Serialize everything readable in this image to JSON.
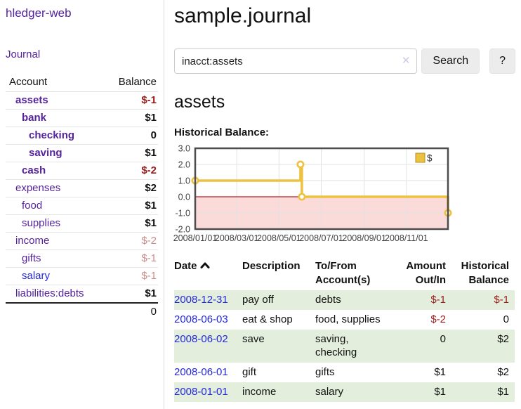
{
  "sidebar": {
    "brand": "hledger-web",
    "nav_journal": "Journal",
    "accounts_table": {
      "headers": [
        "Account",
        "Balance"
      ],
      "rows": [
        {
          "name": "assets",
          "depth": 1,
          "bold": true,
          "balance": "$-1",
          "balance_color": "dark-red"
        },
        {
          "name": "bank",
          "depth": 2,
          "bold": true,
          "balance": "$1",
          "balance_color": "black"
        },
        {
          "name": "checking",
          "depth": 3,
          "bold": true,
          "balance": "0",
          "balance_color": "black"
        },
        {
          "name": "saving",
          "depth": 3,
          "bold": true,
          "balance": "$1",
          "balance_color": "black"
        },
        {
          "name": "cash",
          "depth": 2,
          "bold": true,
          "balance": "$-2",
          "balance_color": "dark-red"
        },
        {
          "name": "expenses",
          "depth": 1,
          "bold": false,
          "balance": "$2",
          "balance_color": "black"
        },
        {
          "name": "food",
          "depth": 2,
          "bold": false,
          "balance": "$1",
          "balance_color": "black"
        },
        {
          "name": "supplies",
          "depth": 2,
          "bold": false,
          "balance": "$1",
          "balance_color": "black"
        },
        {
          "name": "income",
          "depth": 1,
          "bold": false,
          "balance": "$-2",
          "balance_color": "soft-red"
        },
        {
          "name": "gifts",
          "depth": 2,
          "bold": false,
          "balance": "$-1",
          "balance_color": "soft-red"
        },
        {
          "name": "salary",
          "depth": 2,
          "bold": false,
          "balance": "$-1",
          "balance_color": "soft-red",
          "link_color": "blue"
        },
        {
          "name": "liabilities:debts",
          "depth": 1,
          "bold": false,
          "balance": "$1",
          "balance_color": "black"
        }
      ],
      "total": "0"
    }
  },
  "header": {
    "title": "sample.journal"
  },
  "search": {
    "value": "inacct:assets",
    "clear_label": "✕",
    "button": "Search",
    "help_button": "?"
  },
  "main": {
    "account_title": "assets",
    "chart_label": "Historical Balance:"
  },
  "chart_data": {
    "type": "line",
    "title": "Historical Balance:",
    "style": "step",
    "x_range": [
      "2008-01-01",
      "2008-12-31"
    ],
    "ylim": [
      -2,
      3
    ],
    "yticks": [
      3.0,
      2.0,
      1.0,
      0.0,
      -1.0,
      -2.0
    ],
    "xticks": [
      "2008/01/01",
      "2008/03/01",
      "2008/05/01",
      "2008/07/01",
      "2008/09/01",
      "2008/11/01"
    ],
    "series": [
      {
        "name": "$",
        "color": "#edc240",
        "points": [
          [
            "2008-01-01",
            1
          ],
          [
            "2008-06-01",
            2
          ],
          [
            "2008-06-03",
            0
          ],
          [
            "2008-12-31",
            -1
          ]
        ]
      }
    ],
    "legend": [
      {
        "label": "$",
        "color": "#edc240"
      }
    ],
    "legend_position": "top-right",
    "grid": true,
    "negative_region_fill": "#fbdada",
    "zero_line_color": "#b22222",
    "axis_text_color": "#3f3f3f"
  },
  "register": {
    "headers": {
      "date": "Date",
      "description": "Description",
      "accounts": "To/From Account(s)",
      "amount": "Amount Out/In",
      "balance": "Historical Balance"
    },
    "rows": [
      {
        "date": "2008-12-31",
        "description": "pay off",
        "accounts": "debts",
        "amount": "$-1",
        "balance": "$-1"
      },
      {
        "date": "2008-06-03",
        "description": "eat & shop",
        "accounts": "food, supplies",
        "amount": "$-2",
        "balance": "0"
      },
      {
        "date": "2008-06-02",
        "description": "save",
        "accounts": "saving, checking",
        "amount": "0",
        "balance": "$2"
      },
      {
        "date": "2008-06-01",
        "description": "gift",
        "accounts": "gifts",
        "amount": "$1",
        "balance": "$2"
      },
      {
        "date": "2008-01-01",
        "description": "income",
        "accounts": "salary",
        "amount": "$1",
        "balance": "$1"
      }
    ]
  }
}
